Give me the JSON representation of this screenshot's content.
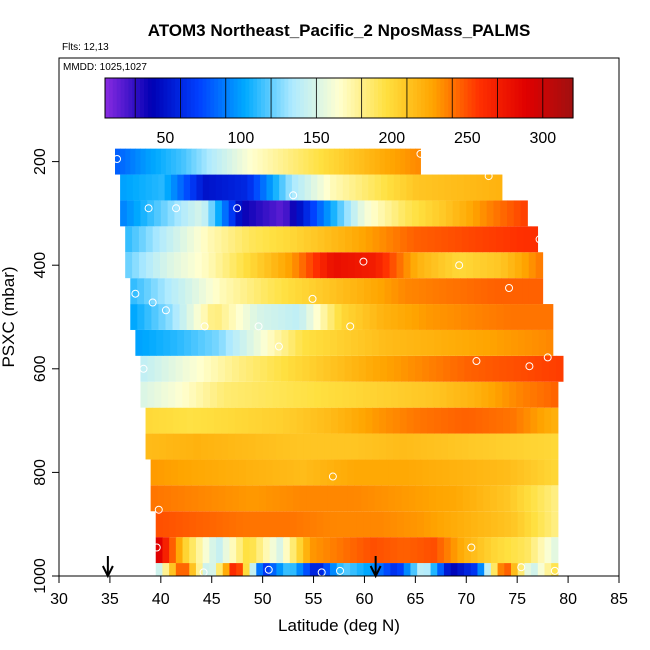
{
  "chart_data": {
    "type": "heatmap",
    "title": "ATOM3 Northeast_Pacific_2 NposMass_PALMS",
    "flights_label": "Flts: 12,13",
    "mmdd_label": "MMDD: 1025,1027",
    "xlabel": "Latitude (deg N)",
    "ylabel": "PSXC (mbar)",
    "xlim": [
      30,
      85
    ],
    "ylim": [
      1000,
      0
    ],
    "x_ticks": [
      "30",
      "35",
      "40",
      "45",
      "50",
      "55",
      "60",
      "65",
      "70",
      "75",
      "80",
      "85"
    ],
    "y_ticks": [
      "200",
      "400",
      "600",
      "800",
      "1000"
    ],
    "colorbar": {
      "range": [
        10,
        320
      ],
      "ticks": [
        "50",
        "100",
        "150",
        "200",
        "250",
        "300"
      ],
      "colors": [
        "#8a2be2",
        "#0000b4",
        "#0040ff",
        "#00aaff",
        "#aeeaff",
        "#ffffd0",
        "#ffe040",
        "#ffa500",
        "#ff3000",
        "#e00000",
        "#a01010"
      ],
      "boundaries": [
        10,
        30,
        60,
        90,
        120,
        150,
        180,
        210,
        240,
        270,
        300,
        320
      ]
    },
    "bands": [
      {
        "p": 1000,
        "x0": 39.5,
        "x1": 79,
        "v": [
          130,
          260,
          130,
          280,
          60,
          120,
          50,
          120,
          100,
          60,
          150,
          40,
          70,
          260,
          140,
          200
        ]
      },
      {
        "p": 950,
        "x0": 39.5,
        "x1": 79,
        "v": [
          300,
          200,
          140,
          200,
          150,
          230,
          240,
          250,
          245,
          250,
          220,
          200,
          190,
          150
        ]
      },
      {
        "p": 900,
        "x0": 39.5,
        "x1": 79,
        "v": [
          250,
          245,
          240,
          240,
          235,
          235,
          230,
          220,
          210,
          180
        ]
      },
      {
        "p": 850,
        "x0": 39,
        "x1": 79,
        "v": [
          240,
          235,
          230,
          235,
          235,
          230,
          225,
          210,
          180
        ]
      },
      {
        "p": 800,
        "x0": 39,
        "x1": 79,
        "v": [
          230,
          225,
          220,
          215,
          225,
          225,
          220,
          215,
          200
        ]
      },
      {
        "p": 750,
        "x0": 38.5,
        "x1": 79,
        "v": [
          215,
          220,
          215,
          210,
          210,
          215,
          210,
          205,
          200
        ]
      },
      {
        "p": 700,
        "x0": 38.5,
        "x1": 79,
        "v": [
          200,
          195,
          200,
          205,
          215,
          230,
          240,
          245,
          240,
          220
        ]
      },
      {
        "p": 650,
        "x0": 38,
        "x1": 79,
        "v": [
          150,
          165,
          185,
          190,
          195,
          200,
          205,
          210,
          220,
          235,
          245
        ]
      },
      {
        "p": 600,
        "x0": 38,
        "x1": 79.5,
        "v": [
          140,
          160,
          180,
          195,
          210,
          225,
          235,
          245,
          250,
          255
        ]
      },
      {
        "p": 550,
        "x0": 37.5,
        "x1": 78.5,
        "v": [
          100,
          110,
          125,
          160,
          195,
          205,
          215,
          220,
          225,
          230,
          235
        ]
      },
      {
        "p": 500,
        "x0": 37,
        "x1": 78.5,
        "v": [
          100,
          130,
          185,
          150,
          140,
          200,
          220,
          230,
          235,
          240,
          240
        ]
      },
      {
        "p": 450,
        "x0": 37,
        "x1": 77.5,
        "v": [
          110,
          140,
          170,
          190,
          205,
          220,
          235,
          240,
          245,
          245
        ]
      },
      {
        "p": 400,
        "x0": 36.5,
        "x1": 77.5,
        "v": [
          120,
          150,
          170,
          200,
          230,
          280,
          270,
          220,
          200,
          210,
          240
        ]
      },
      {
        "p": 350,
        "x0": 36.5,
        "x1": 77,
        "v": [
          110,
          140,
          170,
          190,
          200,
          215,
          230,
          245,
          250,
          255,
          260
        ]
      },
      {
        "p": 300,
        "x0": 36,
        "x1": 76,
        "v": [
          90,
          120,
          150,
          40,
          20,
          90,
          160,
          190,
          210,
          235,
          255
        ]
      },
      {
        "p": 250,
        "x0": 36,
        "x1": 73.5,
        "v": [
          100,
          110,
          50,
          60,
          130,
          170,
          190,
          210,
          215,
          220
        ]
      },
      {
        "p": 200,
        "x0": 35.5,
        "x1": 65.5,
        "v": [
          80,
          100,
          115,
          140,
          165,
          180,
          195,
          210,
          225,
          235
        ]
      }
    ],
    "markers": [
      {
        "lat": 35.7,
        "p": 195
      },
      {
        "lat": 65.5,
        "p": 185
      },
      {
        "lat": 72.2,
        "p": 228
      },
      {
        "lat": 53,
        "p": 265
      },
      {
        "lat": 38.8,
        "p": 290
      },
      {
        "lat": 41.5,
        "p": 290
      },
      {
        "lat": 47.5,
        "p": 290
      },
      {
        "lat": 77.2,
        "p": 350
      },
      {
        "lat": 59.9,
        "p": 393
      },
      {
        "lat": 69.3,
        "p": 400
      },
      {
        "lat": 74.2,
        "p": 444
      },
      {
        "lat": 37.5,
        "p": 455
      },
      {
        "lat": 39.2,
        "p": 472
      },
      {
        "lat": 40.5,
        "p": 487
      },
      {
        "lat": 54.9,
        "p": 465
      },
      {
        "lat": 44.3,
        "p": 518
      },
      {
        "lat": 49.6,
        "p": 518
      },
      {
        "lat": 58.6,
        "p": 518
      },
      {
        "lat": 51.6,
        "p": 557
      },
      {
        "lat": 38.3,
        "p": 600
      },
      {
        "lat": 71,
        "p": 585
      },
      {
        "lat": 76.2,
        "p": 595
      },
      {
        "lat": 78,
        "p": 578
      },
      {
        "lat": 56.9,
        "p": 808
      },
      {
        "lat": 39.8,
        "p": 872
      },
      {
        "lat": 39.6,
        "p": 945
      },
      {
        "lat": 70.5,
        "p": 945
      },
      {
        "lat": 44.2,
        "p": 993
      },
      {
        "lat": 50.6,
        "p": 988
      },
      {
        "lat": 55.8,
        "p": 993
      },
      {
        "lat": 57.6,
        "p": 990
      },
      {
        "lat": 75.4,
        "p": 983
      },
      {
        "lat": 78.7,
        "p": 990
      }
    ],
    "arrows": [
      {
        "lat": 34.8
      },
      {
        "lat": 61.1
      }
    ]
  }
}
